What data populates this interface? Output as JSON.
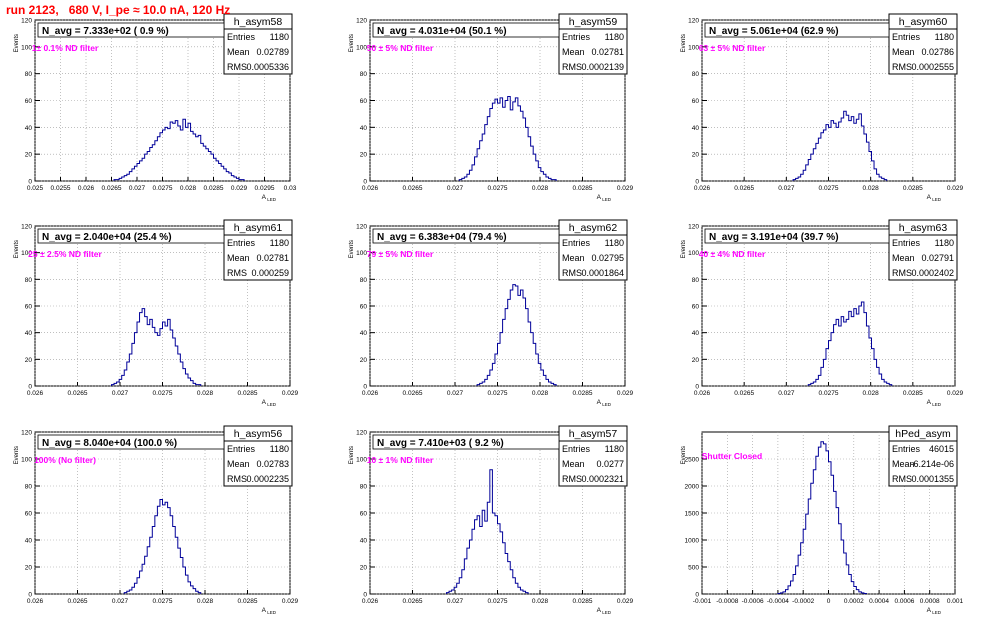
{
  "run_title": "run 2123,   680 V, I_pe ≈ 10.0 nA, 120 Hz",
  "colors": {
    "histogram_line": "#000099",
    "filter_text": "#ff00ff",
    "title_text": "#ff0000",
    "grid": "#999999",
    "axis": "#000000"
  },
  "chart_data": [
    {
      "type": "histogram",
      "name": "h_asym58",
      "ylabel": "Events",
      "xlabel": "A_{LED}",
      "grid": true,
      "xlim": [
        0.025,
        0.03
      ],
      "ylim": [
        0,
        120
      ],
      "xticks": [
        "0.025",
        "0.0255",
        "0.026",
        "0.0265",
        "0.027",
        "0.0275",
        "0.028",
        "0.0285",
        "0.029",
        "0.0295",
        "0.03"
      ],
      "xtick_values": [
        0.025,
        0.0255,
        0.026,
        0.0265,
        0.027,
        0.0275,
        0.028,
        0.0285,
        0.029,
        0.0295,
        0.03
      ],
      "yticks": [
        "0",
        "20",
        "40",
        "60",
        "80",
        "100",
        "120"
      ],
      "ytick_values": [
        0,
        20,
        40,
        60,
        80,
        100,
        120
      ],
      "nbins": 100,
      "bin_start": 0.025,
      "bin_width": 5e-05,
      "first_bin": 31,
      "counts": [
        1,
        1,
        2,
        3,
        4,
        5,
        7,
        9,
        11,
        13,
        15,
        17,
        20,
        22,
        25,
        27,
        30,
        33,
        36,
        38,
        40,
        39,
        44,
        43,
        45,
        41,
        38,
        46,
        40,
        43,
        37,
        35,
        33,
        34,
        28,
        26,
        24,
        22,
        20,
        17,
        15,
        13,
        11,
        9,
        7,
        6,
        4,
        3,
        2,
        1,
        1
      ],
      "stats": {
        "entries_label": "Entries",
        "entries": "1180",
        "mean_label": "Mean",
        "mean": "0.02789",
        "rms_label": "RMS",
        "rms": "0.0005336"
      },
      "n_avg": "N_avg = 7.333e+02 ( 0.9 %)",
      "filter": "1± 0.1% ND filter"
    },
    {
      "type": "histogram",
      "name": "h_asym59",
      "ylabel": "Events",
      "xlabel": "A_{LED}",
      "grid": true,
      "xlim": [
        0.026,
        0.029
      ],
      "ylim": [
        0,
        120
      ],
      "xticks": [
        "0.026",
        "0.0265",
        "0.027",
        "0.0275",
        "0.028",
        "0.0285",
        "0.029"
      ],
      "xtick_values": [
        0.026,
        0.0265,
        0.027,
        0.0275,
        0.028,
        0.0285,
        0.029
      ],
      "yticks": [
        "0",
        "20",
        "40",
        "60",
        "80",
        "100",
        "120"
      ],
      "ytick_values": [
        0,
        20,
        40,
        60,
        80,
        100,
        120
      ],
      "nbins": 100,
      "bin_start": 0.026,
      "bin_width": 3e-05,
      "first_bin": 35,
      "counts": [
        1,
        2,
        3,
        5,
        8,
        12,
        18,
        24,
        30,
        35,
        42,
        48,
        54,
        58,
        61,
        58,
        62,
        55,
        60,
        63,
        53,
        59,
        62,
        56,
        52,
        47,
        40,
        33,
        26,
        20,
        15,
        10,
        7,
        5,
        3,
        2,
        1,
        1
      ],
      "stats": {
        "entries_label": "Entries",
        "entries": "1180",
        "mean_label": "Mean",
        "mean": "0.02781",
        "rms_label": "RMS",
        "rms": "0.0002139"
      },
      "n_avg": "N_avg = 4.031e+04 (50.1 %)",
      "filter": "50 ± 5% ND filter"
    },
    {
      "type": "histogram",
      "name": "h_asym60",
      "ylabel": "Events",
      "xlabel": "A_{LED}",
      "grid": true,
      "xlim": [
        0.026,
        0.029
      ],
      "ylim": [
        0,
        120
      ],
      "xticks": [
        "0.026",
        "0.0265",
        "0.027",
        "0.0275",
        "0.028",
        "0.0285",
        "0.029"
      ],
      "xtick_values": [
        0.026,
        0.0265,
        0.027,
        0.0275,
        0.028,
        0.0285,
        0.029
      ],
      "yticks": [
        "0",
        "20",
        "40",
        "60",
        "80",
        "100",
        "120"
      ],
      "ytick_values": [
        0,
        20,
        40,
        60,
        80,
        100,
        120
      ],
      "nbins": 100,
      "bin_start": 0.026,
      "bin_width": 3e-05,
      "first_bin": 36,
      "counts": [
        1,
        2,
        3,
        5,
        8,
        12,
        16,
        20,
        24,
        28,
        32,
        36,
        38,
        42,
        40,
        45,
        43,
        40,
        44,
        47,
        52,
        49,
        45,
        48,
        43,
        46,
        50,
        41,
        35,
        29,
        22,
        15,
        9,
        5,
        3,
        2,
        1
      ],
      "stats": {
        "entries_label": "Entries",
        "entries": "1180",
        "mean_label": "Mean",
        "mean": "0.02786",
        "rms_label": "RMS",
        "rms": "0.0002555"
      },
      "n_avg": "N_avg = 5.061e+04 (62.9 %)",
      "filter": "63 ± 5% ND filter"
    },
    {
      "type": "histogram",
      "name": "h_asym61",
      "ylabel": "Events",
      "xlabel": "A_{LED}",
      "grid": true,
      "xlim": [
        0.026,
        0.029
      ],
      "ylim": [
        0,
        120
      ],
      "xticks": [
        "0.026",
        "0.0265",
        "0.027",
        "0.0275",
        "0.028",
        "0.0285",
        "0.029"
      ],
      "xtick_values": [
        0.026,
        0.0265,
        0.027,
        0.0275,
        0.028,
        0.0285,
        0.029
      ],
      "yticks": [
        "0",
        "20",
        "40",
        "60",
        "80",
        "100",
        "120"
      ],
      "ytick_values": [
        0,
        20,
        40,
        60,
        80,
        100,
        120
      ],
      "nbins": 100,
      "bin_start": 0.026,
      "bin_width": 3e-05,
      "first_bin": 30,
      "counts": [
        1,
        2,
        3,
        5,
        8,
        12,
        18,
        24,
        32,
        40,
        48,
        55,
        58,
        52,
        46,
        50,
        44,
        40,
        38,
        43,
        48,
        45,
        50,
        42,
        36,
        30,
        24,
        18,
        13,
        9,
        6,
        4,
        2,
        1,
        1
      ],
      "stats": {
        "entries_label": "Entries",
        "entries": "1180",
        "mean_label": "Mean",
        "mean": "0.02781",
        "rms_label": "RMS",
        "rms": "0.000259"
      },
      "n_avg": "N_avg = 2.040e+04 (25.4 %)",
      "filter": "25 ± 2.5% ND filter"
    },
    {
      "type": "histogram",
      "name": "h_asym62",
      "ylabel": "Events",
      "xlabel": "A_{LED}",
      "grid": true,
      "xlim": [
        0.026,
        0.029
      ],
      "ylim": [
        0,
        120
      ],
      "xticks": [
        "0.026",
        "0.0265",
        "0.027",
        "0.0275",
        "0.028",
        "0.0285",
        "0.029"
      ],
      "xtick_values": [
        0.026,
        0.0265,
        0.027,
        0.0275,
        0.028,
        0.0285,
        0.029
      ],
      "yticks": [
        "0",
        "20",
        "40",
        "60",
        "80",
        "100",
        "120"
      ],
      "ytick_values": [
        0,
        20,
        40,
        60,
        80,
        100,
        120
      ],
      "nbins": 100,
      "bin_start": 0.026,
      "bin_width": 3e-05,
      "first_bin": 42,
      "counts": [
        1,
        2,
        3,
        5,
        8,
        12,
        17,
        24,
        32,
        40,
        50,
        58,
        65,
        72,
        76,
        75,
        68,
        72,
        66,
        58,
        48,
        40,
        32,
        24,
        17,
        12,
        8,
        5,
        3,
        2,
        1
      ],
      "stats": {
        "entries_label": "Entries",
        "entries": "1180",
        "mean_label": "Mean",
        "mean": "0.02795",
        "rms_label": "RMS",
        "rms": "0.0001864"
      },
      "n_avg": "N_avg = 6.383e+04 (79.4 %)",
      "filter": "79 ± 5% ND filter"
    },
    {
      "type": "histogram",
      "name": "h_asym63",
      "ylabel": "Events",
      "xlabel": "A_{LED}",
      "grid": true,
      "xlim": [
        0.026,
        0.029
      ],
      "ylim": [
        0,
        120
      ],
      "xticks": [
        "0.026",
        "0.0265",
        "0.027",
        "0.0275",
        "0.028",
        "0.0285",
        "0.029"
      ],
      "xtick_values": [
        0.026,
        0.0265,
        0.027,
        0.0275,
        0.028,
        0.0285,
        0.029
      ],
      "yticks": [
        "0",
        "20",
        "40",
        "60",
        "80",
        "100",
        "120"
      ],
      "ytick_values": [
        0,
        20,
        40,
        60,
        80,
        100,
        120
      ],
      "nbins": 100,
      "bin_start": 0.026,
      "bin_width": 3e-05,
      "first_bin": 42,
      "counts": [
        1,
        2,
        3,
        5,
        8,
        14,
        20,
        28,
        34,
        40,
        46,
        50,
        45,
        52,
        48,
        50,
        56,
        52,
        58,
        54,
        60,
        63,
        55,
        45,
        36,
        28,
        20,
        14,
        9,
        5,
        3,
        2,
        1
      ],
      "stats": {
        "entries_label": "Entries",
        "entries": "1180",
        "mean_label": "Mean",
        "mean": "0.02791",
        "rms_label": "RMS",
        "rms": "0.0002402"
      },
      "n_avg": "N_avg = 3.191e+04 (39.7 %)",
      "filter": "40 ± 4% ND filter"
    },
    {
      "type": "histogram",
      "name": "h_asym56",
      "ylabel": "Events",
      "xlabel": "A_{LED}",
      "grid": true,
      "xlim": [
        0.026,
        0.029
      ],
      "ylim": [
        0,
        120
      ],
      "xticks": [
        "0.026",
        "0.0265",
        "0.027",
        "0.0275",
        "0.028",
        "0.0285",
        "0.029"
      ],
      "xtick_values": [
        0.026,
        0.0265,
        0.027,
        0.0275,
        0.028,
        0.0285,
        0.029
      ],
      "yticks": [
        "0",
        "20",
        "40",
        "60",
        "80",
        "100",
        "120"
      ],
      "ytick_values": [
        0,
        20,
        40,
        60,
        80,
        100,
        120
      ],
      "nbins": 100,
      "bin_start": 0.026,
      "bin_width": 3e-05,
      "first_bin": 35,
      "counts": [
        1,
        2,
        3,
        5,
        8,
        12,
        17,
        22,
        28,
        35,
        42,
        50,
        58,
        65,
        70,
        66,
        68,
        64,
        58,
        50,
        42,
        34,
        27,
        20,
        14,
        9,
        6,
        4,
        2,
        1
      ],
      "stats": {
        "entries_label": "Entries",
        "entries": "1180",
        "mean_label": "Mean",
        "mean": "0.02783",
        "rms_label": "RMS",
        "rms": "0.0002235"
      },
      "n_avg": "N_avg = 8.040e+04 (100.0 %)",
      "filter": "100% (No filter)"
    },
    {
      "type": "histogram",
      "name": "h_asym57",
      "ylabel": "Events",
      "xlabel": "A_{LED}",
      "grid": true,
      "xlim": [
        0.026,
        0.029
      ],
      "ylim": [
        0,
        120
      ],
      "xticks": [
        "0.026",
        "0.0265",
        "0.027",
        "0.0275",
        "0.028",
        "0.0285",
        "0.029"
      ],
      "xtick_values": [
        0.026,
        0.0265,
        0.027,
        0.0275,
        0.028,
        0.0285,
        0.029
      ],
      "yticks": [
        "0",
        "20",
        "40",
        "60",
        "80",
        "100",
        "120"
      ],
      "ytick_values": [
        0,
        20,
        40,
        60,
        80,
        100,
        120
      ],
      "nbins": 100,
      "bin_start": 0.026,
      "bin_width": 3e-05,
      "first_bin": 30,
      "counts": [
        1,
        2,
        3,
        5,
        8,
        12,
        18,
        26,
        34,
        40,
        48,
        55,
        58,
        50,
        62,
        54,
        68,
        92,
        60,
        58,
        52,
        46,
        38,
        30,
        24,
        18,
        12,
        8,
        5,
        3,
        2,
        1
      ],
      "stats": {
        "entries_label": "Entries",
        "entries": "1180",
        "mean_label": "Mean",
        "mean": "0.0277",
        "rms_label": "RMS",
        "rms": "0.0002321"
      },
      "n_avg": "N_avg = 7.410e+03 ( 9.2 %)",
      "filter": "10 ± 1% ND filter"
    },
    {
      "type": "histogram",
      "name": "hPed_asym",
      "ylabel": "Events",
      "xlabel": "A_{LED}",
      "grid": true,
      "xlim": [
        -0.001,
        0.001
      ],
      "ylim": [
        0,
        3000
      ],
      "xticks": [
        "-0.001",
        "-0.0008",
        "-0.0006",
        "-0.0004",
        "-0.0002",
        "0",
        "0.0002",
        "0.0004",
        "0.0006",
        "0.0008",
        "0.001"
      ],
      "xtick_values": [
        -0.001,
        -0.0008,
        -0.0006,
        -0.0004,
        -0.0002,
        0,
        0.0002,
        0.0004,
        0.0006,
        0.0008,
        0.001
      ],
      "yticks": [
        "0",
        "500",
        "1000",
        "1500",
        "2000",
        "2500"
      ],
      "ytick_values": [
        0,
        500,
        1000,
        1500,
        2000,
        2500
      ],
      "nbins": 100,
      "bin_start": -0.001,
      "bin_width": 2e-05,
      "first_bin": 30,
      "counts": [
        10,
        20,
        40,
        80,
        150,
        240,
        360,
        520,
        720,
        950,
        1200,
        1480,
        1760,
        2050,
        2300,
        2550,
        2720,
        2820,
        2780,
        2650,
        2450,
        2200,
        1900,
        1600,
        1300,
        1000,
        760,
        540,
        360,
        230,
        140,
        80,
        40,
        20,
        10
      ],
      "stats": {
        "entries_label": "Entries",
        "entries": "46015",
        "mean_label": "Mean",
        "mean": "-6.214e-06",
        "rms_label": "RMS",
        "rms": "0.0001355"
      },
      "n_avg": "",
      "filter": "Shutter Closed"
    }
  ]
}
